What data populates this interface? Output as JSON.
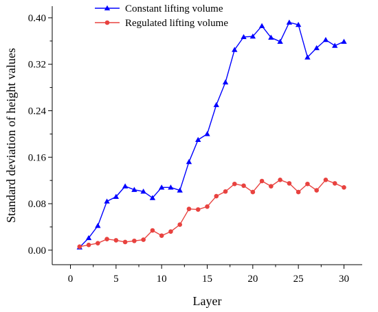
{
  "chart_data": {
    "type": "line",
    "xlabel": "Layer",
    "ylabel": "Standard deviation of height values",
    "xlim": [
      -2,
      32
    ],
    "ylim": [
      -0.025,
      0.42
    ],
    "xticks": [
      0,
      5,
      10,
      15,
      20,
      25,
      30
    ],
    "yticks": [
      0.0,
      0.08,
      0.16,
      0.24,
      0.32,
      0.4
    ],
    "xtick_labels": [
      "0",
      "5",
      "10",
      "15",
      "20",
      "25",
      "30"
    ],
    "ytick_labels": [
      "0.00",
      "0.08",
      "0.16",
      "0.24",
      "0.32",
      "0.40"
    ],
    "grid": false,
    "legend_position": "top-left",
    "x": [
      1,
      2,
      3,
      4,
      5,
      6,
      7,
      8,
      9,
      10,
      11,
      12,
      13,
      14,
      15,
      16,
      17,
      18,
      19,
      20,
      21,
      22,
      23,
      24,
      25,
      26,
      27,
      28,
      29,
      30
    ],
    "series": [
      {
        "name": "Constant lifting volume",
        "color": "#0000ff",
        "marker": "triangle",
        "values": [
          0.005,
          0.021,
          0.042,
          0.084,
          0.092,
          0.11,
          0.104,
          0.101,
          0.09,
          0.108,
          0.108,
          0.103,
          0.152,
          0.19,
          0.2,
          0.25,
          0.289,
          0.345,
          0.367,
          0.368,
          0.386,
          0.366,
          0.359,
          0.392,
          0.388,
          0.332,
          0.348,
          0.362,
          0.352,
          0.359
        ]
      },
      {
        "name": "Regulated lifting volume",
        "color": "#e8423f",
        "marker": "circle",
        "values": [
          0.006,
          0.009,
          0.012,
          0.019,
          0.017,
          0.014,
          0.016,
          0.018,
          0.034,
          0.025,
          0.032,
          0.044,
          0.071,
          0.07,
          0.075,
          0.093,
          0.101,
          0.114,
          0.111,
          0.1,
          0.119,
          0.11,
          0.121,
          0.115,
          0.1,
          0.114,
          0.103,
          0.121,
          0.115,
          0.108
        ]
      }
    ]
  }
}
